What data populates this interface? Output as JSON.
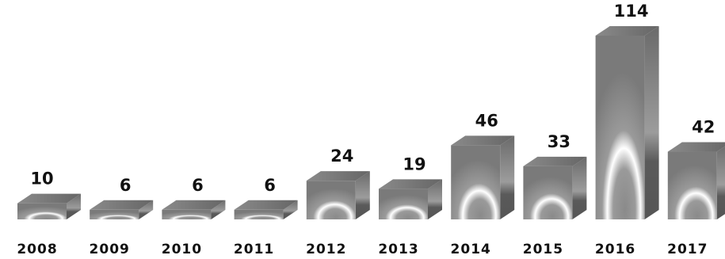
{
  "chart_data": {
    "type": "bar",
    "style": "3d",
    "categories": [
      "2008",
      "2009",
      "2010",
      "2011",
      "2012",
      "2013",
      "2014",
      "2015",
      "2016",
      "2017"
    ],
    "values": [
      10,
      6,
      6,
      6,
      24,
      19,
      46,
      33,
      114,
      42
    ],
    "title": "",
    "xlabel": "",
    "ylabel": "",
    "ylim": [
      0,
      114
    ],
    "grid": false,
    "legend": "none",
    "data_labels": true,
    "colors": {
      "bar_front": "#8a8a8a",
      "bar_top": "#6e6e6e",
      "bar_side": "#5c5c5c",
      "highlight": "#ffffff"
    }
  }
}
